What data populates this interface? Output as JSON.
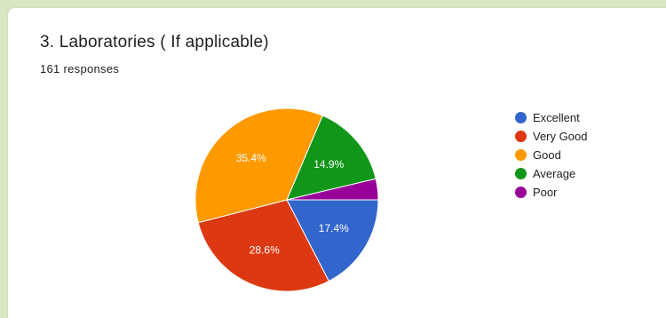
{
  "question": {
    "title": "3. Laboratories ( If applicable)",
    "responses": "161 responses"
  },
  "chart_data": {
    "type": "pie",
    "legend_position": "right",
    "categories": [
      "Excellent",
      "Very Good",
      "Good",
      "Average",
      "Poor"
    ],
    "values": [
      17.4,
      28.6,
      35.4,
      14.9,
      3.7
    ],
    "value_labels": [
      "17.4%",
      "28.6%",
      "35.4%",
      "14.9%",
      ""
    ],
    "colors": [
      "#3366cc",
      "#dc3912",
      "#ff9900",
      "#109618",
      "#990099"
    ]
  }
}
